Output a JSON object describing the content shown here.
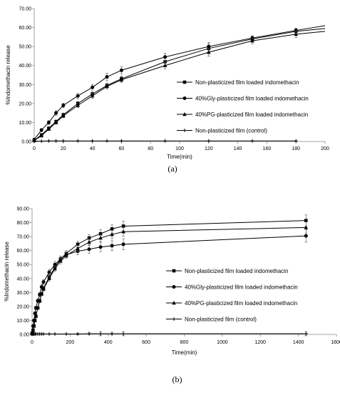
{
  "chart_data": [
    {
      "type": "line",
      "panel_label": "(a)",
      "xlabel": "Time(min)",
      "ylabel": "%Indomethacin release",
      "xlim": [
        0,
        200
      ],
      "ylim": [
        0,
        70
      ],
      "xticks": [
        "0",
        "20",
        "40",
        "60",
        "80",
        "100",
        "120",
        "140",
        "160",
        "180",
        "200"
      ],
      "yticks": [
        "0.00",
        "10.00",
        "20.00",
        "30.00",
        "40.00",
        "50.00",
        "60.00",
        "70.00"
      ],
      "legend_position": "right",
      "series": [
        {
          "name": "Non-plasticized film loaded indomethacin",
          "marker": "square",
          "x": [
            0,
            5,
            10,
            15,
            20,
            30,
            40,
            50,
            60,
            90,
            120,
            150,
            180
          ],
          "y": [
            0.5,
            3.5,
            7,
            10.5,
            14,
            20,
            25,
            29.5,
            33,
            42,
            49,
            54,
            58
          ],
          "err": [
            0.5,
            0.6,
            0.7,
            0.8,
            1,
            1,
            1.2,
            1.3,
            1.5,
            2,
            2.3,
            1.5,
            1.5
          ],
          "curve_end": [
            200,
            59.5
          ]
        },
        {
          "name": "40%Gly-plasticized film loaded indomethacin",
          "marker": "circle",
          "x": [
            0,
            5,
            10,
            15,
            20,
            30,
            40,
            50,
            60,
            90,
            120,
            150,
            180
          ],
          "y": [
            1,
            6,
            10,
            15,
            19,
            24,
            28.5,
            34,
            37.5,
            44.5,
            50,
            54.5,
            58.5
          ],
          "err": [
            0.5,
            0.8,
            1,
            1.2,
            1.2,
            1.5,
            1.5,
            2,
            1.8,
            2,
            2.2,
            1.2,
            1.2
          ],
          "curve_end": [
            200,
            61
          ]
        },
        {
          "name": "40%PG-plasticized film loaded indomethacin",
          "marker": "triangle",
          "x": [
            0,
            5,
            10,
            15,
            20,
            30,
            40,
            50,
            60,
            90,
            120,
            150,
            180
          ],
          "y": [
            0.5,
            3,
            6.5,
            10,
            13.5,
            19,
            24,
            29,
            32.5,
            40,
            47,
            53,
            56.5
          ],
          "err": [
            0.5,
            0.6,
            0.7,
            0.8,
            1,
            1,
            1.2,
            1.3,
            1.5,
            1.8,
            2,
            1.5,
            1.8
          ],
          "curve_end": [
            200,
            58
          ]
        },
        {
          "name": "Non-plasticized film (control)",
          "marker": "plus",
          "x": [
            0,
            5,
            10,
            15,
            20,
            30,
            40,
            50,
            60,
            90,
            120,
            150,
            180
          ],
          "y": [
            0.2,
            0.2,
            0.3,
            0.3,
            0.3,
            0.3,
            0.3,
            0.3,
            0.3,
            0.3,
            0.3,
            0.3,
            0.3
          ],
          "err": [
            0.1,
            0.1,
            0.1,
            0.1,
            0.1,
            0.1,
            0.1,
            0.1,
            0.1,
            0.1,
            0.1,
            0.1,
            0.1
          ]
        }
      ]
    },
    {
      "type": "line",
      "panel_label": "(b)",
      "xlabel": "Time(min)",
      "ylabel": "%Indomethacin release",
      "xlim": [
        0,
        1600
      ],
      "ylim": [
        0,
        90
      ],
      "xticks": [
        "0",
        "200",
        "400",
        "600",
        "800",
        "1000",
        "1200",
        "1400",
        "1600"
      ],
      "yticks": [
        "0.00",
        "10.00",
        "20.00",
        "30.00",
        "40.00",
        "50.00",
        "60.00",
        "70.00",
        "80.00",
        "90.00"
      ],
      "legend_position": "center-right",
      "series": [
        {
          "name": "Non-plasticized film loaded indomethacin",
          "marker": "square",
          "x": [
            0,
            5,
            10,
            15,
            20,
            30,
            40,
            50,
            60,
            90,
            120,
            150,
            180,
            240,
            300,
            360,
            420,
            480,
            1440
          ],
          "y": [
            0.5,
            3,
            6,
            10,
            13,
            19,
            24,
            29,
            33,
            41,
            48,
            54,
            58,
            64.5,
            69,
            72,
            75.5,
            77.5,
            81.5
          ],
          "err": [
            0.5,
            0.5,
            0.6,
            0.8,
            1,
            1,
            1.2,
            1.3,
            1.5,
            1.8,
            2,
            2,
            2,
            2.2,
            2.5,
            2.8,
            3,
            3.5,
            4
          ]
        },
        {
          "name": "40%Gly-plasticized film loaded indomethacin",
          "marker": "circle",
          "x": [
            0,
            5,
            10,
            15,
            20,
            30,
            40,
            50,
            60,
            90,
            120,
            150,
            180,
            240,
            300,
            360,
            420,
            480,
            1440
          ],
          "y": [
            1,
            6,
            10,
            15,
            19,
            24,
            28.5,
            34,
            37.5,
            44.5,
            50,
            54,
            57,
            59.5,
            61,
            62.5,
            63.5,
            64.5,
            70.5
          ],
          "err": [
            0.5,
            0.8,
            1,
            1.2,
            1.2,
            1.5,
            1.5,
            2,
            1.8,
            2,
            2.2,
            2,
            2,
            2.5,
            3,
            3.5,
            3.5,
            4,
            4.5
          ]
        },
        {
          "name": "40%PG-plasticized film loaded indomethacin",
          "marker": "triangle",
          "x": [
            0,
            5,
            10,
            15,
            20,
            30,
            40,
            50,
            60,
            90,
            120,
            150,
            180,
            240,
            300,
            360,
            420,
            480,
            1440
          ],
          "y": [
            0.5,
            3,
            6,
            10,
            13.5,
            19,
            24,
            29,
            32.5,
            40,
            47,
            52.5,
            56.5,
            61.5,
            66,
            69,
            71.5,
            73.5,
            76.5
          ],
          "err": [
            0.5,
            0.5,
            0.6,
            0.8,
            1,
            1,
            1.2,
            1.3,
            1.5,
            1.8,
            2,
            2,
            2,
            2.2,
            2.5,
            2.8,
            3,
            3.2,
            4
          ]
        },
        {
          "name": "Non-plasticized film (control)",
          "marker": "plus",
          "x": [
            0,
            5,
            10,
            15,
            20,
            30,
            40,
            50,
            60,
            90,
            120,
            180,
            240,
            300,
            360,
            420,
            480,
            1440
          ],
          "y": [
            0.3,
            0.3,
            0.3,
            0.3,
            0.3,
            0.3,
            0.3,
            0.3,
            0.3,
            0.3,
            0.3,
            0.3,
            0.3,
            0.5,
            0.5,
            0.5,
            0.5,
            0.5
          ],
          "err": [
            0.1,
            0.1,
            0.1,
            0.1,
            0.1,
            0.1,
            0.1,
            0.1,
            0.1,
            0.1,
            0.1,
            0.1,
            0.5,
            0.8,
            1.5,
            1,
            1.5,
            1.5
          ]
        }
      ]
    }
  ]
}
